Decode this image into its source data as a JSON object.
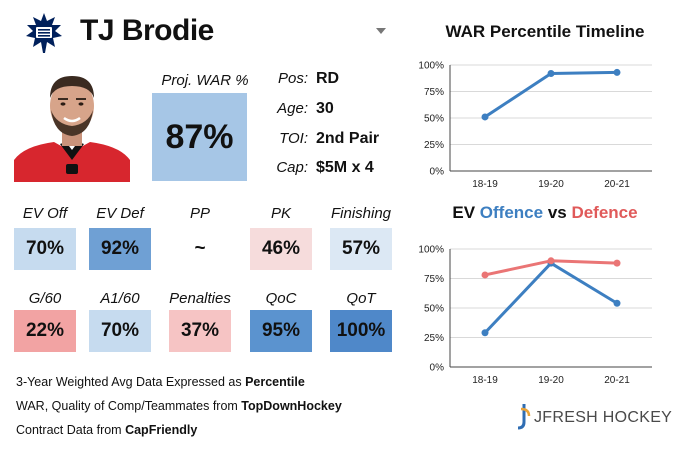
{
  "header": {
    "player_name": "TJ Brodie"
  },
  "proj_war": {
    "label": "Proj. WAR %",
    "value": "87%"
  },
  "info": [
    {
      "label": "Pos:",
      "value": "RD"
    },
    {
      "label": "Age:",
      "value": "30"
    },
    {
      "label": "TOI:",
      "value": "2nd Pair"
    },
    {
      "label": "Cap:",
      "value": "$5M x 4"
    }
  ],
  "stats_row1": [
    {
      "label": "EV Off",
      "value": "70%",
      "color": "#c6dbef"
    },
    {
      "label": "EV Def",
      "value": "92%",
      "color": "#6fa0d4"
    },
    {
      "label": "PP",
      "value": "~",
      "color": "#ffffff"
    },
    {
      "label": "PK",
      "value": "46%",
      "color": "#f6dcdc"
    },
    {
      "label": "Finishing",
      "value": "57%",
      "color": "#dce8f4"
    }
  ],
  "stats_row2": [
    {
      "label": "G/60",
      "value": "22%",
      "color": "#f2a3a3"
    },
    {
      "label": "A1/60",
      "value": "70%",
      "color": "#c6dbef"
    },
    {
      "label": "Penalties",
      "value": "37%",
      "color": "#f6c4c4"
    },
    {
      "label": "QoC",
      "value": "95%",
      "color": "#5b93cf"
    },
    {
      "label": "QoT",
      "value": "100%",
      "color": "#4f88c9"
    }
  ],
  "notes": {
    "line1_prefix": "3-Year Weighted Avg Data Expressed as ",
    "line1_bold": "Percentile",
    "line2_prefix": "WAR, Quality of Comp/Teammates from ",
    "line2_bold": "TopDownHockey",
    "line3_prefix": "Contract Data from ",
    "line3_bold": "CapFriendly"
  },
  "brand": {
    "text": "JFRESH HOCKEY"
  },
  "chart_data": [
    {
      "type": "line",
      "title": "WAR Percentile Timeline",
      "x": [
        "18-19",
        "19-20",
        "20-21"
      ],
      "ylim": [
        0,
        100
      ],
      "yticks": [
        "0%",
        "25%",
        "50%",
        "75%",
        "100%"
      ],
      "series": [
        {
          "values": [
            51,
            92,
            93
          ],
          "color": "#3d7fc1"
        }
      ]
    },
    {
      "type": "line",
      "title_parts": [
        "EV ",
        "Offence",
        " vs ",
        "Defence"
      ],
      "title_colors": [
        "#111111",
        "#3d7fc1",
        "#111111",
        "#e05a5a"
      ],
      "x": [
        "18-19",
        "19-20",
        "20-21"
      ],
      "ylim": [
        0,
        100
      ],
      "yticks": [
        "0%",
        "25%",
        "50%",
        "75%",
        "100%"
      ],
      "series": [
        {
          "name": "Offence",
          "values": [
            29,
            88,
            54
          ],
          "color": "#3d7fc1"
        },
        {
          "name": "Defence",
          "values": [
            78,
            90,
            88
          ],
          "color": "#ea7575"
        }
      ]
    }
  ]
}
